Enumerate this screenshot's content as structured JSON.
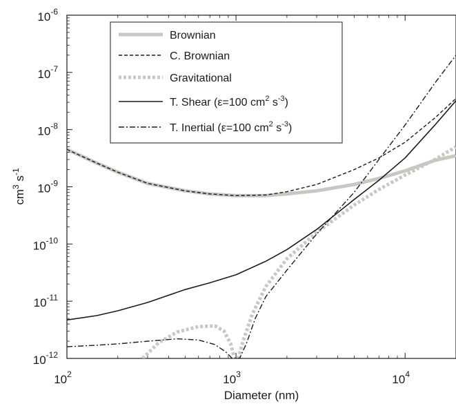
{
  "chart_data": {
    "type": "line",
    "xscale": "log",
    "yscale": "log",
    "xlim": [
      100,
      20000
    ],
    "ylim": [
      1e-12,
      1e-06
    ],
    "xlabel": "Diameter (nm)",
    "ylabel": {
      "base": "cm",
      "sup1": "3",
      "mid": " s",
      "sup2": "-1"
    },
    "xticks": [
      {
        "value": 100,
        "base": "10",
        "exp": "2"
      },
      {
        "value": 1000,
        "base": "10",
        "exp": "3"
      },
      {
        "value": 10000,
        "base": "10",
        "exp": "4"
      }
    ],
    "yticks": [
      {
        "value": 1e-12,
        "base": "10",
        "exp": "-12"
      },
      {
        "value": 1e-11,
        "base": "10",
        "exp": "-11"
      },
      {
        "value": 1e-10,
        "base": "10",
        "exp": "-10"
      },
      {
        "value": 1e-09,
        "base": "10",
        "exp": "-9"
      },
      {
        "value": 1e-08,
        "base": "10",
        "exp": "-8"
      },
      {
        "value": 1e-07,
        "base": "10",
        "exp": "-7"
      },
      {
        "value": 1e-06,
        "base": "10",
        "exp": "-6"
      }
    ],
    "legend_position": "top-center",
    "series": [
      {
        "name": "Brownian",
        "color": "#c9c7c1",
        "style": "solid",
        "width": 5,
        "points": [
          [
            100,
            4.5e-09
          ],
          [
            150,
            2.6e-09
          ],
          [
            200,
            1.8e-09
          ],
          [
            300,
            1.15e-09
          ],
          [
            500,
            8.5e-10
          ],
          [
            700,
            7.5e-10
          ],
          [
            1000,
            7e-10
          ],
          [
            1500,
            7e-10
          ],
          [
            2000,
            7.5e-10
          ],
          [
            3000,
            8.5e-10
          ],
          [
            5000,
            1.1e-09
          ],
          [
            7000,
            1.4e-09
          ],
          [
            10000,
            1.9e-09
          ],
          [
            15000,
            2.9e-09
          ],
          [
            20000,
            3.5e-09
          ]
        ]
      },
      {
        "name": "C. Brownian",
        "color": "#1a1a1a",
        "style": "dashed",
        "width": 1.4,
        "points": [
          [
            100,
            4.5e-09
          ],
          [
            150,
            2.6e-09
          ],
          [
            200,
            1.8e-09
          ],
          [
            300,
            1.15e-09
          ],
          [
            500,
            8.5e-10
          ],
          [
            700,
            7.5e-10
          ],
          [
            1000,
            7e-10
          ],
          [
            1500,
            7.2e-10
          ],
          [
            2000,
            8.2e-10
          ],
          [
            3000,
            1.1e-09
          ],
          [
            5000,
            2e-09
          ],
          [
            7000,
            3.2e-09
          ],
          [
            10000,
            6e-09
          ],
          [
            15000,
            1.6e-08
          ],
          [
            20000,
            3.5e-08
          ]
        ]
      },
      {
        "name": "Gravitational",
        "color": "#c9c7c1",
        "style": "dotted",
        "width": 5,
        "points": [
          [
            280,
            1e-12
          ],
          [
            350,
            1.9e-12
          ],
          [
            450,
            2.9e-12
          ],
          [
            600,
            3.6e-12
          ],
          [
            750,
            3.7e-12
          ],
          [
            850,
            3e-12
          ],
          [
            930,
            1.8e-12
          ],
          [
            980,
            1e-12
          ],
          [
            1030,
            1e-12
          ],
          [
            1100,
            2e-12
          ],
          [
            1250,
            6e-12
          ],
          [
            1500,
            1.8e-11
          ],
          [
            2000,
            5.5e-11
          ],
          [
            3000,
            1.6e-10
          ],
          [
            5000,
            4.8e-10
          ],
          [
            7000,
            9e-10
          ],
          [
            10000,
            1.6e-09
          ],
          [
            15000,
            3e-09
          ],
          [
            20000,
            5e-09
          ]
        ]
      },
      {
        "name": "T. Shear (ε=100 cm² s⁻³)",
        "color": "#1a1a1a",
        "style": "solid",
        "width": 1.6,
        "points": [
          [
            100,
            4.7e-12
          ],
          [
            150,
            5.6e-12
          ],
          [
            200,
            6.8e-12
          ],
          [
            300,
            9.5e-12
          ],
          [
            500,
            1.6e-11
          ],
          [
            700,
            2.1e-11
          ],
          [
            1000,
            2.9e-11
          ],
          [
            1500,
            5e-11
          ],
          [
            2000,
            8e-11
          ],
          [
            3000,
            1.8e-10
          ],
          [
            5000,
            6e-10
          ],
          [
            7000,
            1.3e-09
          ],
          [
            10000,
            3.2e-09
          ],
          [
            15000,
            1.2e-08
          ],
          [
            20000,
            3.2e-08
          ]
        ]
      },
      {
        "name": "T. Inertial (ε=100 cm² s⁻³)",
        "color": "#1a1a1a",
        "style": "dashdot",
        "width": 1.4,
        "points": [
          [
            100,
            1.6e-12
          ],
          [
            150,
            1.7e-12
          ],
          [
            200,
            1.8e-12
          ],
          [
            300,
            2e-12
          ],
          [
            450,
            2.2e-12
          ],
          [
            600,
            2.1e-12
          ],
          [
            750,
            1.75e-12
          ],
          [
            870,
            1.3e-12
          ],
          [
            950,
            1e-12
          ],
          [
            1050,
            1e-12
          ],
          [
            1150,
            1.8e-12
          ],
          [
            1300,
            5e-12
          ],
          [
            1500,
            1.2e-11
          ],
          [
            2000,
            3.5e-11
          ],
          [
            3000,
            1.5e-10
          ],
          [
            5000,
            8e-10
          ],
          [
            7000,
            3e-09
          ],
          [
            10000,
            1.2e-08
          ],
          [
            15000,
            6.5e-08
          ],
          [
            20000,
            2e-07
          ]
        ]
      }
    ],
    "legend": [
      {
        "text": "Brownian",
        "sub": []
      },
      {
        "text": "C. Brownian",
        "sub": []
      },
      {
        "text": "Gravitational",
        "sub": []
      },
      {
        "text": "T. Shear (",
        "eps": "ε",
        "rest": "=100 cm",
        "sup1": "2",
        "mid": " s",
        "sup2": "-3",
        "end": ")"
      },
      {
        "text": "T. Inertial (",
        "eps": "ε",
        "rest": "=100 cm",
        "sup1": "2",
        "mid": " s",
        "sup2": "-3",
        "end": ")"
      }
    ]
  }
}
